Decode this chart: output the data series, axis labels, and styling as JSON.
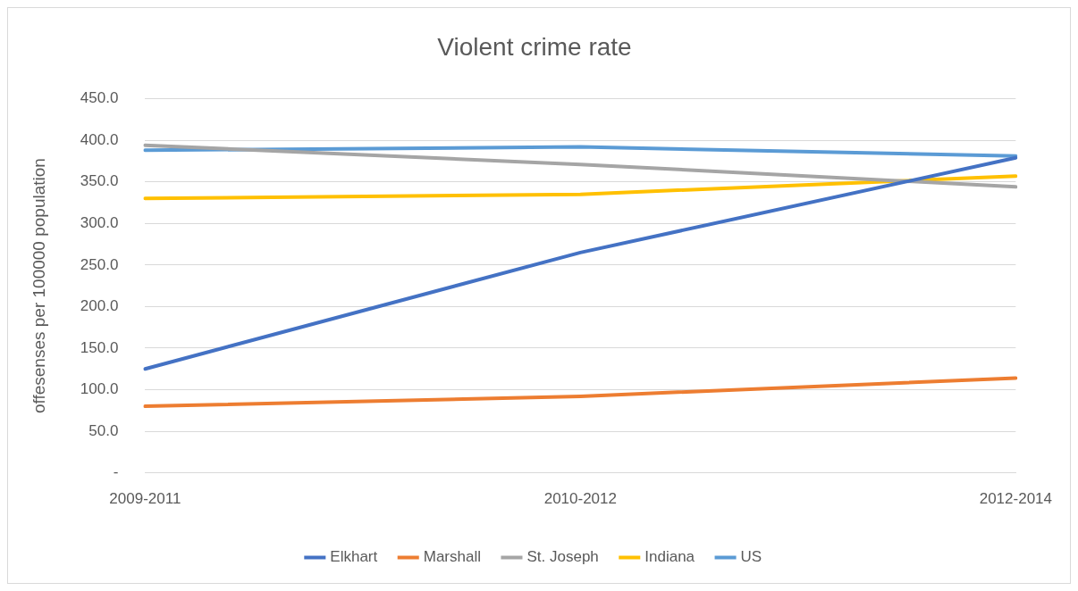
{
  "chart_data": {
    "type": "line",
    "title": "Violent crime rate",
    "ylabel": "offesenses per 100000 population",
    "categories": [
      "2009-2011",
      "2010-2012",
      "2012-2014"
    ],
    "series": [
      {
        "name": "Elkhart",
        "color": "#4472c4",
        "values": [
          125,
          265,
          379
        ]
      },
      {
        "name": "Marshall",
        "color": "#ed7d31",
        "values": [
          80,
          92,
          114
        ]
      },
      {
        "name": "St. Joseph",
        "color": "#a5a5a5",
        "values": [
          394,
          371,
          344
        ]
      },
      {
        "name": "Indiana",
        "color": "#ffc000",
        "values": [
          330,
          335,
          357
        ]
      },
      {
        "name": "US",
        "color": "#5b9bd5",
        "values": [
          388,
          392,
          381
        ]
      }
    ],
    "ylim": [
      0,
      450
    ],
    "yticks": [
      {
        "value": 0,
        "label": "-"
      },
      {
        "value": 50,
        "label": "50.0"
      },
      {
        "value": 100,
        "label": "100.0"
      },
      {
        "value": 150,
        "label": "150.0"
      },
      {
        "value": 200,
        "label": "200.0"
      },
      {
        "value": 250,
        "label": "250.0"
      },
      {
        "value": 300,
        "label": "300.0"
      },
      {
        "value": 350,
        "label": "350.0"
      },
      {
        "value": 400,
        "label": "400.0"
      },
      {
        "value": 450,
        "label": "450.0"
      }
    ],
    "grid": "y",
    "legend": "bottom",
    "marker": "none",
    "line_style": "solid"
  }
}
